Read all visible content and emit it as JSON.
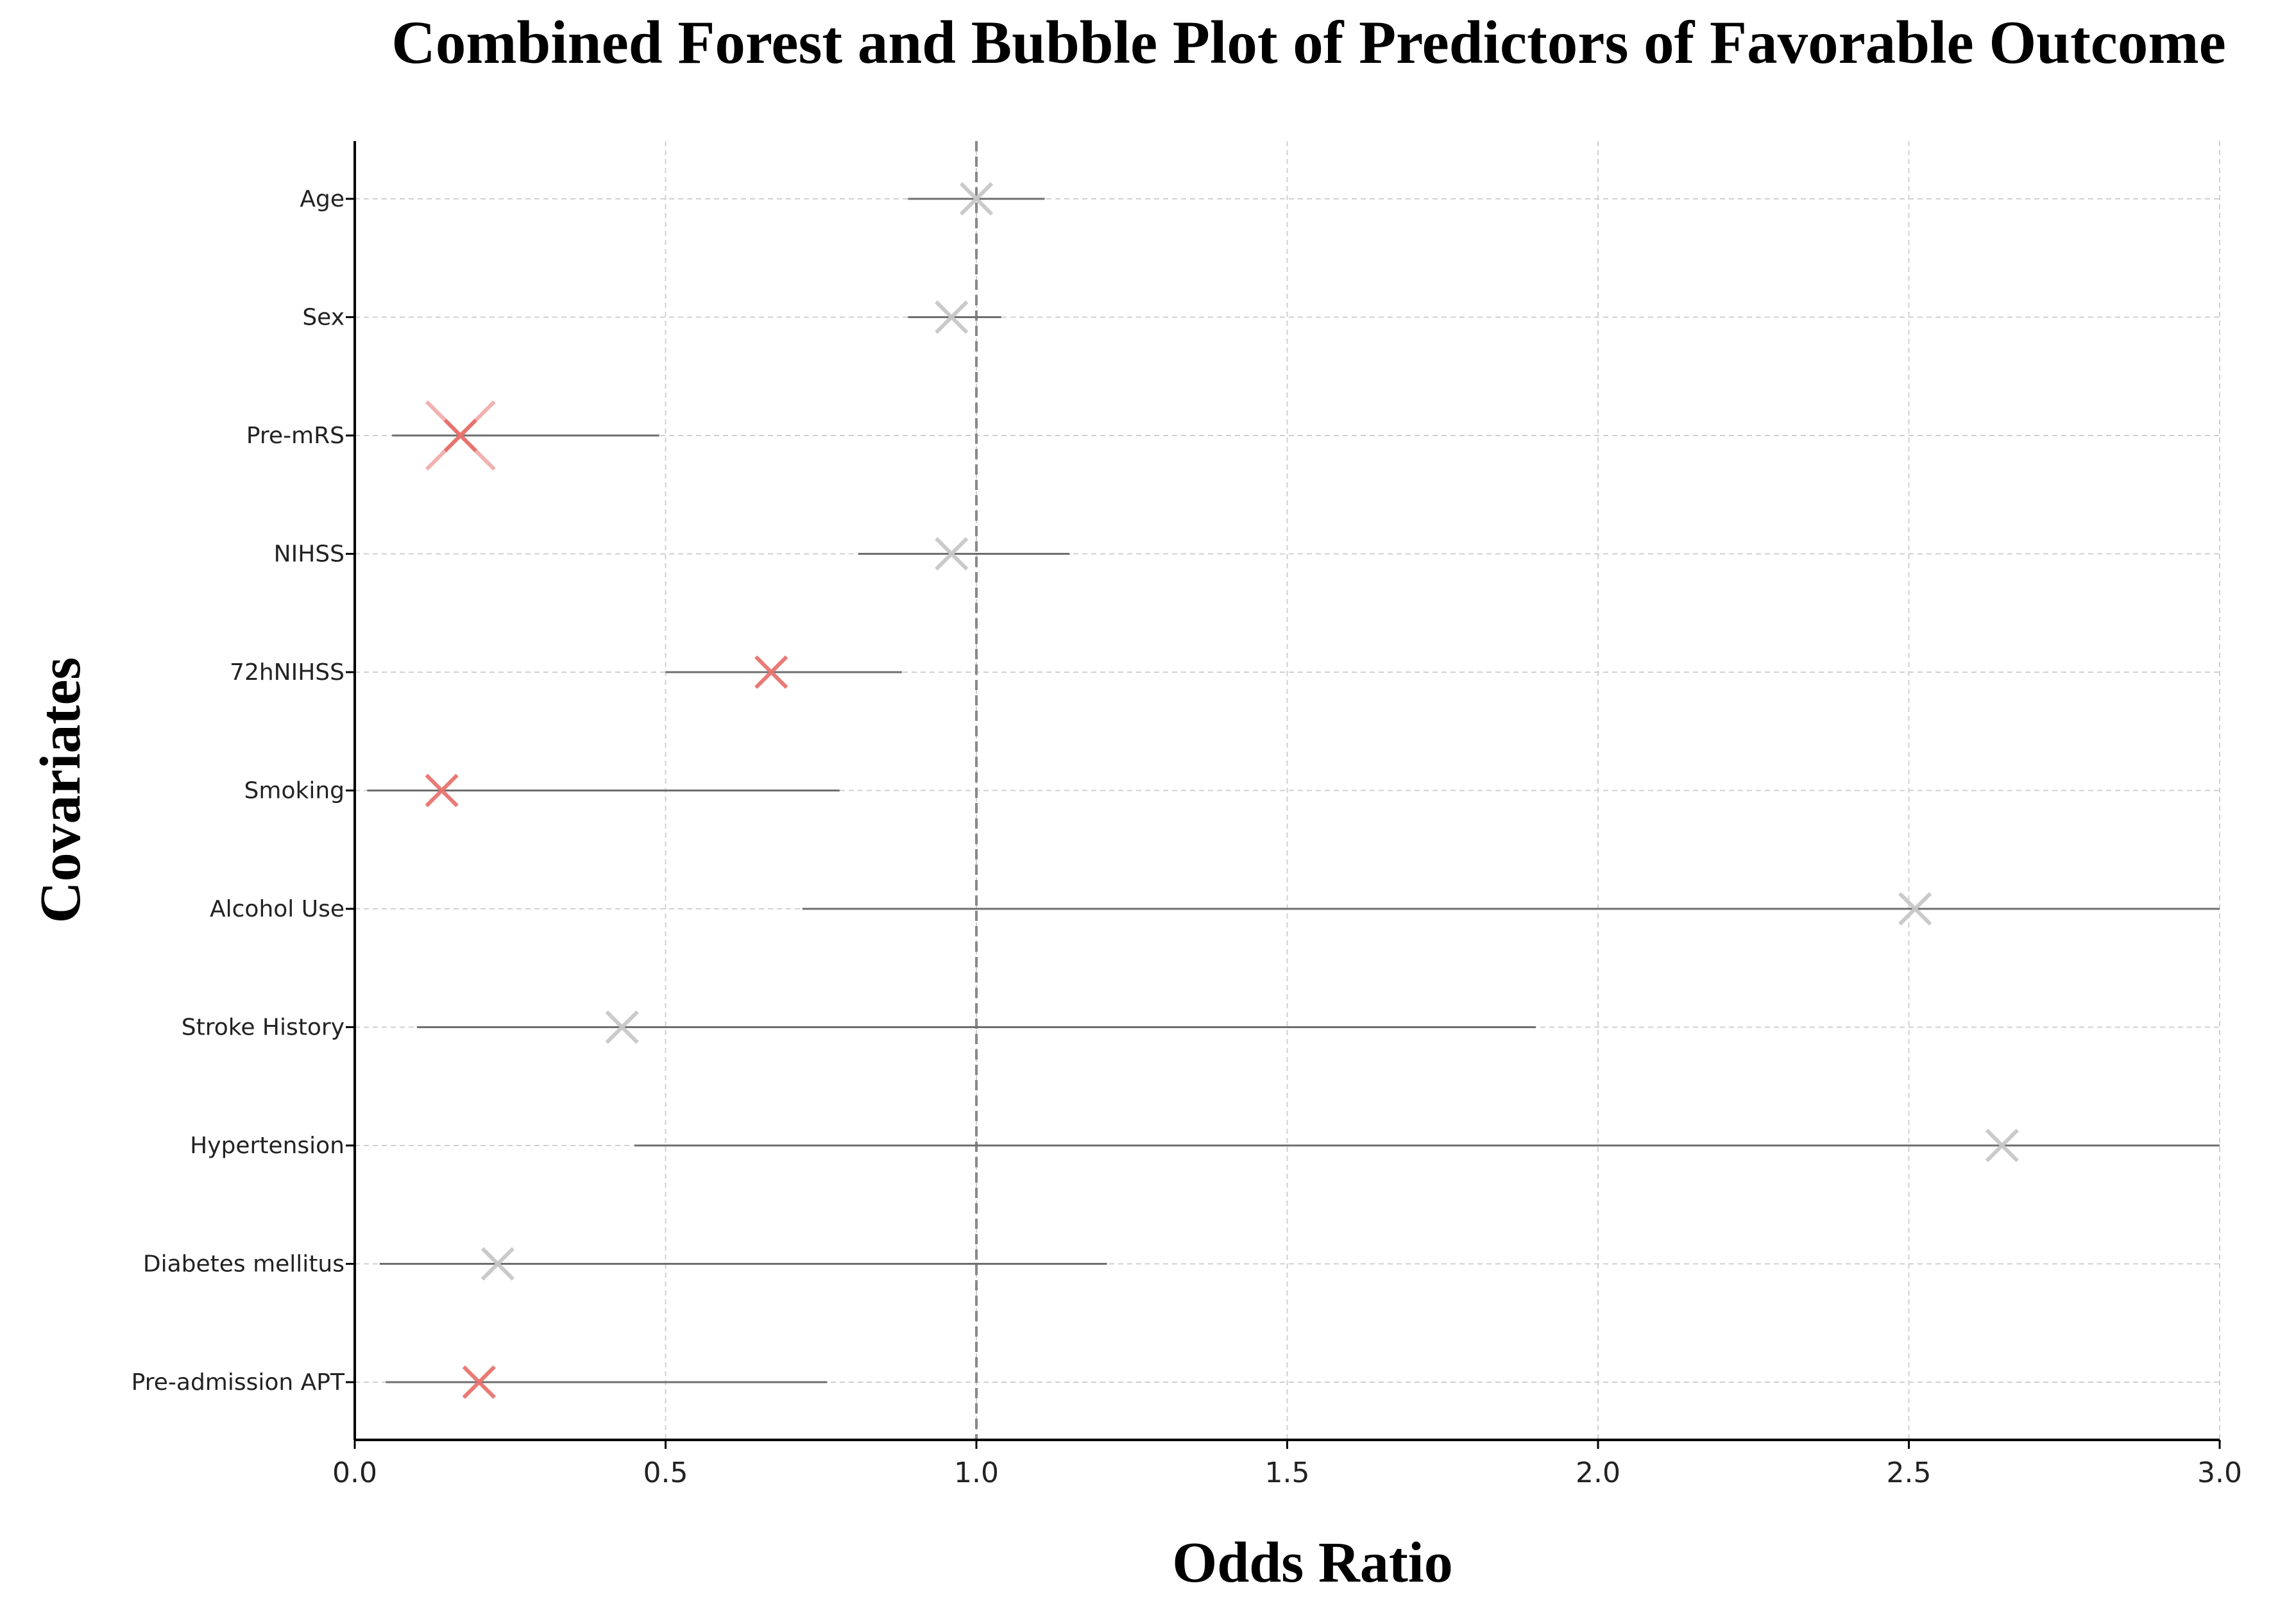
{
  "chart_data": {
    "type": "scatter",
    "subtype": "forest-bubble",
    "title": "Combined Forest and Bubble Plot of Predictors of Favorable Outcome",
    "xlabel": "Odds Ratio",
    "ylabel": "Covariates",
    "xlim": [
      0.0,
      3.0
    ],
    "xticks": [
      "0.0",
      "0.5",
      "1.0",
      "1.5",
      "2.0",
      "2.5",
      "3.0"
    ],
    "reference_line": 1.0,
    "grid": true,
    "colors": {
      "significant": "#e8736e",
      "non_significant": "#c8c8c8",
      "ci_line": "#6e6e6e",
      "reference": "#888888",
      "grid": "#d0d0d0"
    },
    "covariates": [
      {
        "label": "Age",
        "or": 1.0,
        "ci_low": 0.89,
        "ci_high": 1.11,
        "significant": false
      },
      {
        "label": "Sex",
        "or": 0.96,
        "ci_low": 0.89,
        "ci_high": 1.04,
        "significant": false
      },
      {
        "label": "Pre-mRS",
        "or": 0.17,
        "ci_low": 0.06,
        "ci_high": 0.49,
        "significant": true,
        "emphasis": 2.2
      },
      {
        "label": "NIHSS",
        "or": 0.96,
        "ci_low": 0.81,
        "ci_high": 1.15,
        "significant": false
      },
      {
        "label": "72hNIHSS",
        "or": 0.67,
        "ci_low": 0.5,
        "ci_high": 0.88,
        "significant": true
      },
      {
        "label": "Smoking",
        "or": 0.14,
        "ci_low": 0.02,
        "ci_high": 0.78,
        "significant": true
      },
      {
        "label": "Alcohol Use",
        "or": 2.51,
        "ci_low": 0.72,
        "ci_high": 3.0,
        "significant": false
      },
      {
        "label": "Stroke History",
        "or": 0.43,
        "ci_low": 0.1,
        "ci_high": 1.9,
        "significant": false
      },
      {
        "label": "Hypertension",
        "or": 2.65,
        "ci_low": 0.45,
        "ci_high": 3.0,
        "significant": false
      },
      {
        "label": "Diabetes mellitus",
        "or": 0.23,
        "ci_low": 0.04,
        "ci_high": 1.21,
        "significant": false
      },
      {
        "label": "Pre-admission APT",
        "or": 0.2,
        "ci_low": 0.05,
        "ci_high": 0.76,
        "significant": true
      }
    ]
  }
}
